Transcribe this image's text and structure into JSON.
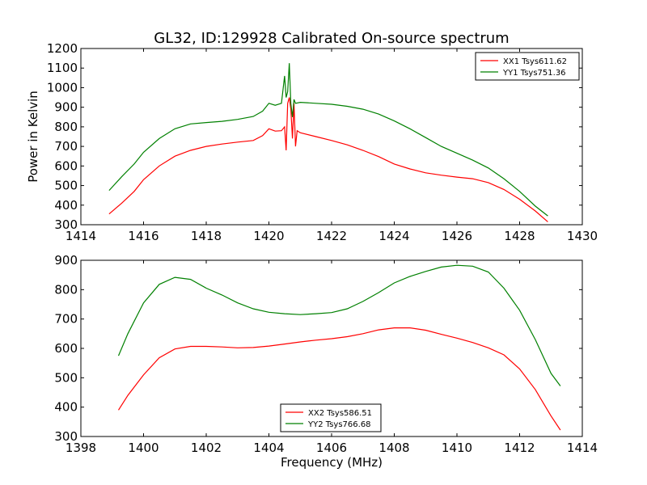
{
  "title": "GL32, ID:129928 Calibrated On-source spectrum",
  "colors": {
    "red": "#ff0000",
    "green": "#008000"
  },
  "chart_data": [
    {
      "type": "line",
      "panel": "top",
      "xlabel": "",
      "ylabel": "Power in Kelvin",
      "xlim": [
        1414,
        1430
      ],
      "ylim": [
        300,
        1200
      ],
      "xticks": [
        1414,
        1416,
        1418,
        1420,
        1422,
        1424,
        1426,
        1428,
        1430
      ],
      "yticks": [
        300,
        400,
        500,
        600,
        700,
        800,
        900,
        1000,
        1100,
        1200
      ],
      "legend": "top-right",
      "series": [
        {
          "name": "XX1 Tsys611.62",
          "color": "#ff0000",
          "points": [
            [
              1414.9,
              355
            ],
            [
              1415.3,
              410
            ],
            [
              1415.7,
              470
            ],
            [
              1416.0,
              530
            ],
            [
              1416.5,
              600
            ],
            [
              1417.0,
              650
            ],
            [
              1417.5,
              680
            ],
            [
              1418.0,
              700
            ],
            [
              1418.5,
              712
            ],
            [
              1419.0,
              722
            ],
            [
              1419.5,
              730
            ],
            [
              1419.8,
              755
            ],
            [
              1420.0,
              790
            ],
            [
              1420.2,
              778
            ],
            [
              1420.4,
              780
            ],
            [
              1420.5,
              800
            ],
            [
              1420.55,
              680
            ],
            [
              1420.6,
              920
            ],
            [
              1420.65,
              950
            ],
            [
              1420.7,
              890
            ],
            [
              1420.75,
              740
            ],
            [
              1420.8,
              920
            ],
            [
              1420.85,
              700
            ],
            [
              1420.9,
              780
            ],
            [
              1421.0,
              770
            ],
            [
              1421.5,
              750
            ],
            [
              1422.0,
              730
            ],
            [
              1422.5,
              708
            ],
            [
              1423.0,
              680
            ],
            [
              1423.5,
              648
            ],
            [
              1424.0,
              610
            ],
            [
              1424.5,
              585
            ],
            [
              1425.0,
              565
            ],
            [
              1425.5,
              553
            ],
            [
              1426.0,
              543
            ],
            [
              1426.5,
              535
            ],
            [
              1427.0,
              515
            ],
            [
              1427.5,
              480
            ],
            [
              1428.0,
              430
            ],
            [
              1428.5,
              370
            ],
            [
              1428.9,
              315
            ]
          ]
        },
        {
          "name": "YY1 Tsys751.36",
          "color": "#008000",
          "points": [
            [
              1414.9,
              475
            ],
            [
              1415.3,
              545
            ],
            [
              1415.7,
              610
            ],
            [
              1416.0,
              670
            ],
            [
              1416.5,
              740
            ],
            [
              1417.0,
              790
            ],
            [
              1417.5,
              815
            ],
            [
              1418.0,
              822
            ],
            [
              1418.5,
              828
            ],
            [
              1419.0,
              838
            ],
            [
              1419.5,
              853
            ],
            [
              1419.8,
              880
            ],
            [
              1420.0,
              920
            ],
            [
              1420.2,
              910
            ],
            [
              1420.4,
              920
            ],
            [
              1420.5,
              1060
            ],
            [
              1420.55,
              950
            ],
            [
              1420.6,
              980
            ],
            [
              1420.65,
              1125
            ],
            [
              1420.7,
              920
            ],
            [
              1420.75,
              850
            ],
            [
              1420.8,
              940
            ],
            [
              1420.85,
              920
            ],
            [
              1421.0,
              925
            ],
            [
              1421.5,
              920
            ],
            [
              1422.0,
              915
            ],
            [
              1422.5,
              905
            ],
            [
              1423.0,
              890
            ],
            [
              1423.5,
              865
            ],
            [
              1424.0,
              830
            ],
            [
              1424.5,
              790
            ],
            [
              1425.0,
              745
            ],
            [
              1425.5,
              700
            ],
            [
              1426.0,
              665
            ],
            [
              1426.5,
              630
            ],
            [
              1427.0,
              590
            ],
            [
              1427.5,
              535
            ],
            [
              1428.0,
              470
            ],
            [
              1428.5,
              395
            ],
            [
              1428.9,
              345
            ]
          ]
        }
      ]
    },
    {
      "type": "line",
      "panel": "bottom",
      "xlabel": "Frequency (MHz)",
      "ylabel": "",
      "xlim": [
        1398,
        1414
      ],
      "ylim": [
        300,
        900
      ],
      "xticks": [
        1398,
        1400,
        1402,
        1404,
        1406,
        1408,
        1410,
        1412,
        1414
      ],
      "yticks": [
        300,
        400,
        500,
        600,
        700,
        800,
        900
      ],
      "legend": "bottom-center",
      "series": [
        {
          "name": "XX2 Tsys586.51",
          "color": "#ff0000",
          "points": [
            [
              1399.2,
              390
            ],
            [
              1399.5,
              440
            ],
            [
              1400.0,
              510
            ],
            [
              1400.5,
              568
            ],
            [
              1401.0,
              598
            ],
            [
              1401.5,
              607
            ],
            [
              1402.0,
              607
            ],
            [
              1402.5,
              605
            ],
            [
              1403.0,
              602
            ],
            [
              1403.5,
              603
            ],
            [
              1404.0,
              608
            ],
            [
              1404.5,
              615
            ],
            [
              1405.0,
              622
            ],
            [
              1405.5,
              628
            ],
            [
              1406.0,
              633
            ],
            [
              1406.5,
              640
            ],
            [
              1407.0,
              650
            ],
            [
              1407.5,
              663
            ],
            [
              1408.0,
              670
            ],
            [
              1408.5,
              670
            ],
            [
              1409.0,
              662
            ],
            [
              1409.5,
              648
            ],
            [
              1410.0,
              635
            ],
            [
              1410.5,
              620
            ],
            [
              1411.0,
              602
            ],
            [
              1411.5,
              578
            ],
            [
              1412.0,
              530
            ],
            [
              1412.5,
              460
            ],
            [
              1413.0,
              370
            ],
            [
              1413.3,
              322
            ]
          ]
        },
        {
          "name": "YY2 Tsys766.68",
          "color": "#008000",
          "points": [
            [
              1399.2,
              575
            ],
            [
              1399.5,
              650
            ],
            [
              1400.0,
              755
            ],
            [
              1400.5,
              818
            ],
            [
              1401.0,
              842
            ],
            [
              1401.5,
              835
            ],
            [
              1402.0,
              805
            ],
            [
              1402.5,
              782
            ],
            [
              1403.0,
              755
            ],
            [
              1403.5,
              735
            ],
            [
              1404.0,
              723
            ],
            [
              1404.5,
              718
            ],
            [
              1405.0,
              715
            ],
            [
              1405.5,
              718
            ],
            [
              1406.0,
              722
            ],
            [
              1406.5,
              735
            ],
            [
              1407.0,
              760
            ],
            [
              1407.5,
              790
            ],
            [
              1408.0,
              823
            ],
            [
              1408.5,
              845
            ],
            [
              1409.0,
              862
            ],
            [
              1409.5,
              877
            ],
            [
              1410.0,
              883
            ],
            [
              1410.5,
              880
            ],
            [
              1411.0,
              860
            ],
            [
              1411.5,
              805
            ],
            [
              1412.0,
              730
            ],
            [
              1412.5,
              630
            ],
            [
              1413.0,
              515
            ],
            [
              1413.3,
              472
            ]
          ]
        }
      ]
    }
  ]
}
